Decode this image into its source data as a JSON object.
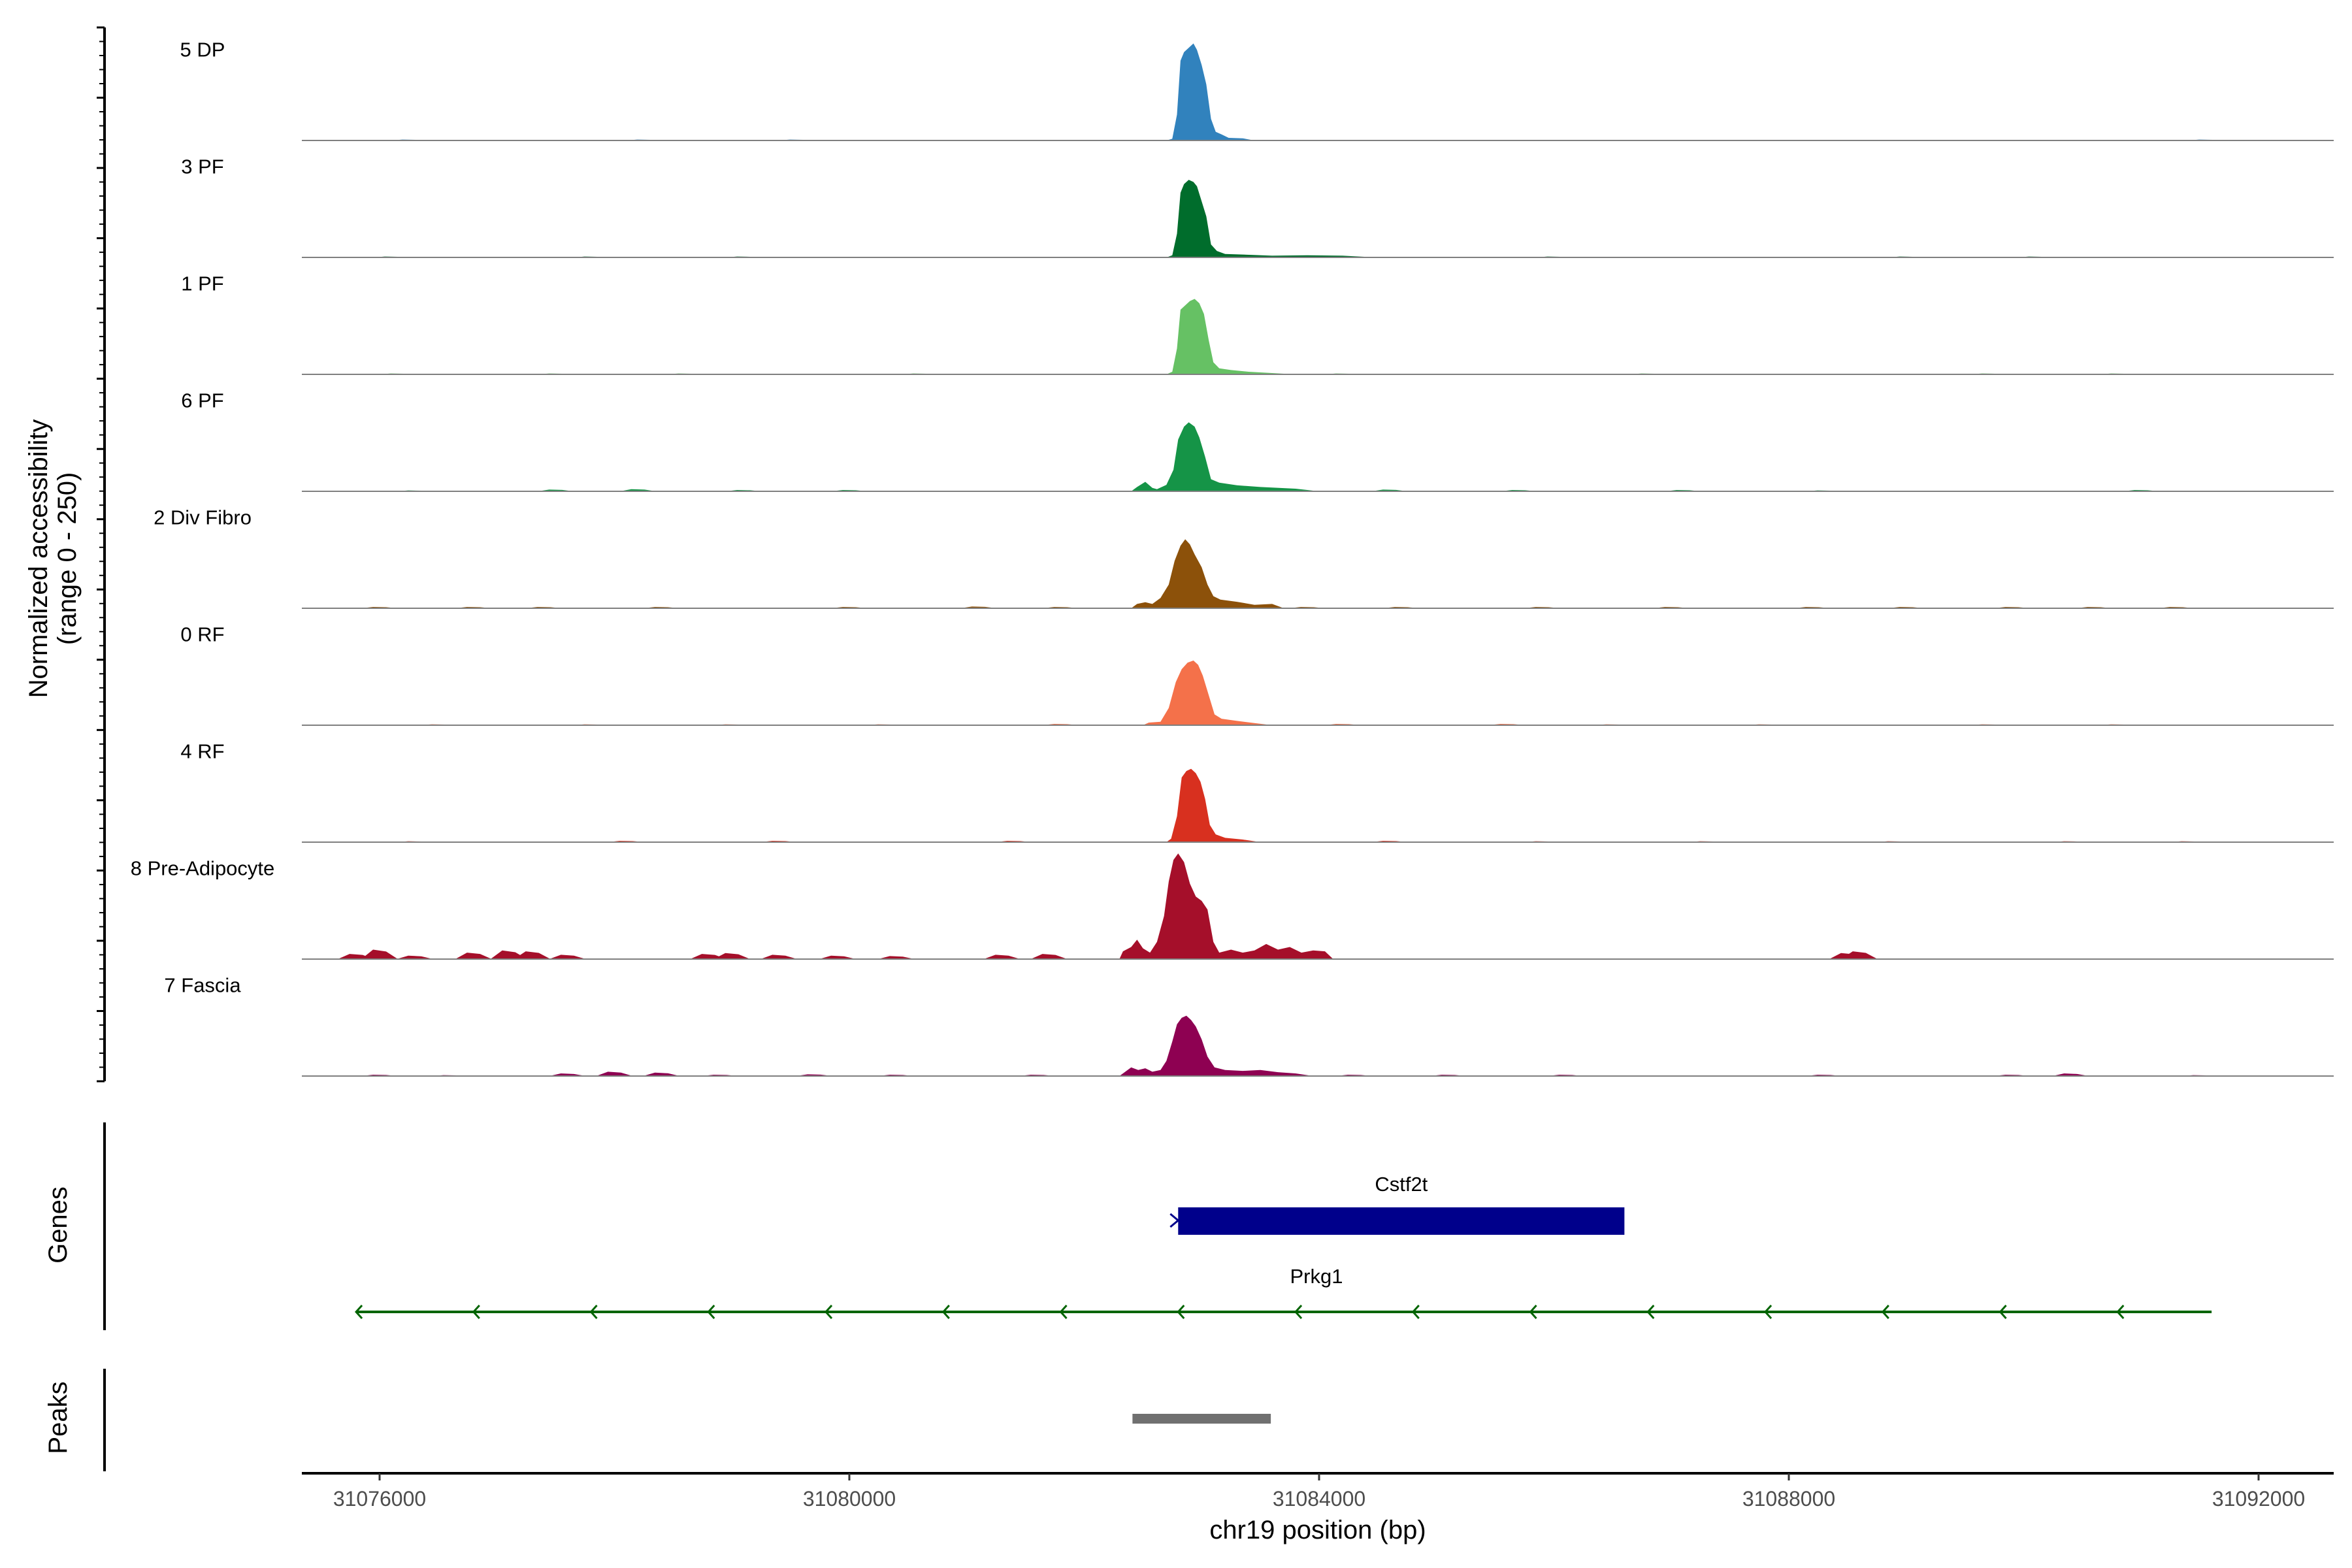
{
  "chart_data": {
    "type": "area",
    "ylabel": "Normalized accessibility\n(range 0 - 250)",
    "xlabel": "chr19 position (bp)",
    "x_range": [
      31075000,
      31092400
    ],
    "x_ticks": [
      31076000,
      31080000,
      31084000,
      31088000,
      31092000
    ],
    "x_tick_labels": [
      "31076000",
      "31080000",
      "31084000",
      "31088000",
      "31092000"
    ],
    "y_range": [
      0,
      250
    ],
    "tracks": [
      {
        "name": "5 DP",
        "color": "#3182BD",
        "points": [
          [
            31082700,
            0
          ],
          [
            31082750,
            4
          ],
          [
            31082790,
            60
          ],
          [
            31082820,
            185
          ],
          [
            31082850,
            205
          ],
          [
            31082890,
            215
          ],
          [
            31082930,
            225
          ],
          [
            31082960,
            210
          ],
          [
            31083000,
            175
          ],
          [
            31083040,
            130
          ],
          [
            31083080,
            50
          ],
          [
            31083120,
            20
          ],
          [
            31083170,
            14
          ],
          [
            31083230,
            6
          ],
          [
            31083350,
            5
          ],
          [
            31083450,
            0
          ]
        ],
        "noise": [
          [
            31076250,
            2
          ],
          [
            31078250,
            2
          ],
          [
            31079550,
            2
          ],
          [
            31080350,
            1
          ],
          [
            31091550,
            2
          ]
        ]
      },
      {
        "name": "3 PF",
        "color": "#006D2C",
        "points": [
          [
            31082700,
            0
          ],
          [
            31082750,
            5
          ],
          [
            31082790,
            55
          ],
          [
            31082820,
            150
          ],
          [
            31082850,
            170
          ],
          [
            31082890,
            180
          ],
          [
            31082930,
            175
          ],
          [
            31082960,
            165
          ],
          [
            31083000,
            130
          ],
          [
            31083040,
            95
          ],
          [
            31083080,
            30
          ],
          [
            31083130,
            15
          ],
          [
            31083200,
            8
          ],
          [
            31083400,
            6
          ],
          [
            31083600,
            4
          ],
          [
            31083900,
            5
          ],
          [
            31084200,
            4
          ],
          [
            31084500,
            0
          ]
        ],
        "noise": [
          [
            31076100,
            2
          ],
          [
            31077800,
            2
          ],
          [
            31079100,
            2
          ],
          [
            31080600,
            1
          ],
          [
            31086000,
            2
          ],
          [
            31089000,
            2
          ],
          [
            31090100,
            2
          ]
        ]
      },
      {
        "name": "1 PF",
        "color": "#66C164",
        "points": [
          [
            31082700,
            0
          ],
          [
            31082750,
            6
          ],
          [
            31082790,
            60
          ],
          [
            31082820,
            150
          ],
          [
            31082860,
            160
          ],
          [
            31082900,
            170
          ],
          [
            31082940,
            175
          ],
          [
            31082980,
            165
          ],
          [
            31083020,
            140
          ],
          [
            31083060,
            80
          ],
          [
            31083100,
            28
          ],
          [
            31083150,
            14
          ],
          [
            31083250,
            10
          ],
          [
            31083400,
            6
          ],
          [
            31083600,
            3
          ],
          [
            31083800,
            0
          ]
        ],
        "noise": [
          [
            31076150,
            2
          ],
          [
            31077500,
            2
          ],
          [
            31078600,
            2
          ],
          [
            31080600,
            2
          ],
          [
            31084200,
            2
          ],
          [
            31086800,
            2
          ],
          [
            31089700,
            2
          ],
          [
            31090800,
            2
          ]
        ]
      },
      {
        "name": "6 PF",
        "color": "#159447",
        "points": [
          [
            31082400,
            0
          ],
          [
            31082450,
            10
          ],
          [
            31082520,
            22
          ],
          [
            31082580,
            8
          ],
          [
            31082620,
            5
          ],
          [
            31082700,
            15
          ],
          [
            31082760,
            50
          ],
          [
            31082800,
            120
          ],
          [
            31082850,
            150
          ],
          [
            31082890,
            160
          ],
          [
            31082940,
            150
          ],
          [
            31082980,
            125
          ],
          [
            31083030,
            80
          ],
          [
            31083080,
            28
          ],
          [
            31083150,
            20
          ],
          [
            31083300,
            14
          ],
          [
            31083500,
            10
          ],
          [
            31083800,
            6
          ],
          [
            31084000,
            0
          ]
        ],
        "noise": [
          [
            31076300,
            2
          ],
          [
            31077500,
            4
          ],
          [
            31078200,
            5
          ],
          [
            31079100,
            3
          ],
          [
            31080000,
            3
          ],
          [
            31084600,
            4
          ],
          [
            31085700,
            3
          ],
          [
            31087100,
            3
          ],
          [
            31088300,
            2
          ],
          [
            31091000,
            3
          ]
        ]
      },
      {
        "name": "2 Div Fibro",
        "color": "#8C510A",
        "points": [
          [
            31082400,
            0
          ],
          [
            31082450,
            10
          ],
          [
            31082520,
            14
          ],
          [
            31082580,
            10
          ],
          [
            31082650,
            24
          ],
          [
            31082720,
            55
          ],
          [
            31082770,
            110
          ],
          [
            31082820,
            145
          ],
          [
            31082860,
            160
          ],
          [
            31082900,
            148
          ],
          [
            31082940,
            125
          ],
          [
            31083000,
            95
          ],
          [
            31083050,
            55
          ],
          [
            31083100,
            28
          ],
          [
            31083160,
            20
          ],
          [
            31083300,
            15
          ],
          [
            31083450,
            8
          ],
          [
            31083600,
            10
          ],
          [
            31083700,
            0
          ]
        ],
        "noise": [
          [
            31076000,
            3
          ],
          [
            31076800,
            3
          ],
          [
            31077400,
            3
          ],
          [
            31078400,
            3
          ],
          [
            31080000,
            3
          ],
          [
            31081100,
            4
          ],
          [
            31081800,
            3
          ],
          [
            31083900,
            3
          ],
          [
            31084700,
            3
          ],
          [
            31085900,
            3
          ],
          [
            31087000,
            3
          ],
          [
            31088200,
            3
          ],
          [
            31089000,
            3
          ],
          [
            31089900,
            3
          ],
          [
            31090600,
            3
          ],
          [
            31091300,
            3
          ]
        ]
      },
      {
        "name": "0 RF",
        "color": "#F4714A",
        "points": [
          [
            31082500,
            0
          ],
          [
            31082550,
            6
          ],
          [
            31082650,
            8
          ],
          [
            31082720,
            40
          ],
          [
            31082780,
            100
          ],
          [
            31082830,
            130
          ],
          [
            31082880,
            145
          ],
          [
            31082930,
            150
          ],
          [
            31082970,
            140
          ],
          [
            31083010,
            115
          ],
          [
            31083060,
            70
          ],
          [
            31083110,
            25
          ],
          [
            31083170,
            15
          ],
          [
            31083300,
            10
          ],
          [
            31083450,
            5
          ],
          [
            31083600,
            0
          ]
        ],
        "noise": [
          [
            31076500,
            2
          ],
          [
            31077800,
            2
          ],
          [
            31079000,
            2
          ],
          [
            31080300,
            2
          ],
          [
            31081800,
            3
          ],
          [
            31084200,
            3
          ],
          [
            31085600,
            3
          ],
          [
            31086500,
            2
          ],
          [
            31087800,
            2
          ],
          [
            31089700,
            2
          ],
          [
            31090800,
            2
          ]
        ]
      },
      {
        "name": "4 RF",
        "color": "#D8301F",
        "points": [
          [
            31082700,
            0
          ],
          [
            31082740,
            8
          ],
          [
            31082790,
            60
          ],
          [
            31082830,
            150
          ],
          [
            31082870,
            165
          ],
          [
            31082910,
            170
          ],
          [
            31082950,
            160
          ],
          [
            31082990,
            140
          ],
          [
            31083030,
            100
          ],
          [
            31083070,
            40
          ],
          [
            31083120,
            18
          ],
          [
            31083200,
            10
          ],
          [
            31083350,
            6
          ],
          [
            31083500,
            0
          ]
        ],
        "noise": [
          [
            31076300,
            2
          ],
          [
            31078100,
            3
          ],
          [
            31079400,
            3
          ],
          [
            31081400,
            3
          ],
          [
            31084600,
            3
          ],
          [
            31085900,
            2
          ],
          [
            31087300,
            2
          ],
          [
            31088900,
            2
          ],
          [
            31090400,
            2
          ],
          [
            31091400,
            2
          ]
        ]
      },
      {
        "name": "8 Pre-Adipocyte",
        "color": "#A50F2A",
        "points": [
          [
            31082300,
            0
          ],
          [
            31082330,
            18
          ],
          [
            31082400,
            28
          ],
          [
            31082450,
            45
          ],
          [
            31082500,
            25
          ],
          [
            31082560,
            15
          ],
          [
            31082620,
            40
          ],
          [
            31082680,
            100
          ],
          [
            31082720,
            180
          ],
          [
            31082760,
            230
          ],
          [
            31082800,
            245
          ],
          [
            31082850,
            225
          ],
          [
            31082900,
            175
          ],
          [
            31082950,
            145
          ],
          [
            31083000,
            135
          ],
          [
            31083050,
            115
          ],
          [
            31083100,
            40
          ],
          [
            31083150,
            15
          ],
          [
            31083250,
            22
          ],
          [
            31083350,
            15
          ],
          [
            31083450,
            20
          ],
          [
            31083550,
            35
          ],
          [
            31083650,
            22
          ],
          [
            31083750,
            28
          ],
          [
            31083850,
            15
          ],
          [
            31083950,
            20
          ],
          [
            31084050,
            18
          ],
          [
            31084120,
            0
          ]
        ],
        "noise": [
          [
            31075800,
            12
          ],
          [
            31076000,
            22
          ],
          [
            31076300,
            8
          ],
          [
            31076800,
            15
          ],
          [
            31077100,
            20
          ],
          [
            31077300,
            18
          ],
          [
            31077600,
            10
          ],
          [
            31078800,
            12
          ],
          [
            31079000,
            14
          ],
          [
            31079400,
            10
          ],
          [
            31079900,
            8
          ],
          [
            31080400,
            7
          ],
          [
            31081300,
            10
          ],
          [
            31081700,
            12
          ],
          [
            31088500,
            14
          ],
          [
            31088600,
            18
          ]
        ]
      },
      {
        "name": "7 Fascia",
        "color": "#8E0152",
        "points": [
          [
            31082300,
            0
          ],
          [
            31082350,
            10
          ],
          [
            31082400,
            20
          ],
          [
            31082460,
            14
          ],
          [
            31082520,
            18
          ],
          [
            31082580,
            10
          ],
          [
            31082650,
            14
          ],
          [
            31082700,
            35
          ],
          [
            31082750,
            80
          ],
          [
            31082790,
            120
          ],
          [
            31082830,
            135
          ],
          [
            31082870,
            140
          ],
          [
            31082910,
            130
          ],
          [
            31082950,
            115
          ],
          [
            31083000,
            85
          ],
          [
            31083050,
            45
          ],
          [
            31083110,
            20
          ],
          [
            31083200,
            14
          ],
          [
            31083350,
            12
          ],
          [
            31083500,
            14
          ],
          [
            31083650,
            9
          ],
          [
            31083800,
            6
          ],
          [
            31083950,
            0
          ]
        ],
        "noise": [
          [
            31076000,
            3
          ],
          [
            31076600,
            2
          ],
          [
            31077600,
            6
          ],
          [
            31078000,
            10
          ],
          [
            31078400,
            8
          ],
          [
            31078900,
            3
          ],
          [
            31079700,
            4
          ],
          [
            31080400,
            3
          ],
          [
            31081600,
            3
          ],
          [
            31084300,
            3
          ],
          [
            31085100,
            3
          ],
          [
            31086100,
            3
          ],
          [
            31088300,
            3
          ],
          [
            31089900,
            3
          ],
          [
            31090400,
            6
          ],
          [
            31091500,
            2
          ]
        ]
      }
    ],
    "genes": [
      {
        "name": "Cstf2t",
        "start": 31082800,
        "end": 31086600,
        "strand": "+",
        "color": "#00008B",
        "type": "block"
      },
      {
        "name": "Prkg1",
        "start": 31075800,
        "end": 31091600,
        "strand": "-",
        "color": "#006400",
        "type": "line"
      }
    ],
    "gene_panel_title": "Genes",
    "peak_panel_title": "Peaks",
    "peaks": [
      {
        "start": 31082500,
        "end": 31083500,
        "color": "#707070"
      }
    ]
  }
}
